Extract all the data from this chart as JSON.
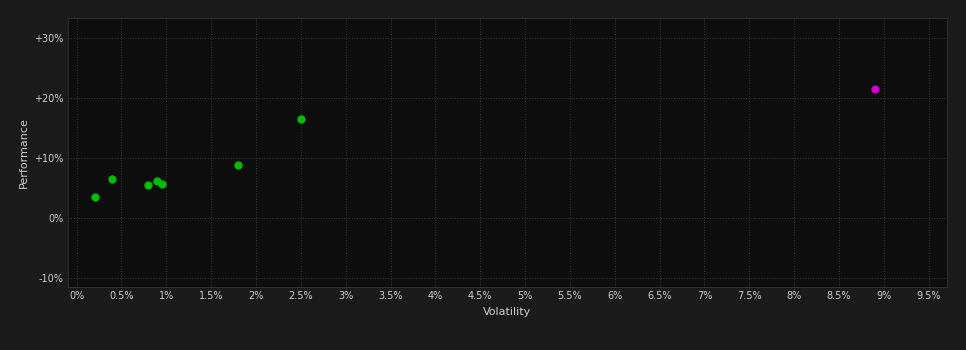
{
  "xlabel": "Volatility",
  "ylabel": "Performance",
  "background_color": "#1a1a1a",
  "plot_bg_color": "#0d0d0d",
  "grid_color": "#3a3a3a",
  "text_color": "#cccccc",
  "xlim": [
    -0.001,
    0.097
  ],
  "ylim": [
    -0.115,
    0.335
  ],
  "xticks": [
    0,
    0.005,
    0.01,
    0.015,
    0.02,
    0.025,
    0.03,
    0.035,
    0.04,
    0.045,
    0.05,
    0.055,
    0.06,
    0.065,
    0.07,
    0.075,
    0.08,
    0.085,
    0.09,
    0.095
  ],
  "yticks": [
    -0.1,
    0.0,
    0.1,
    0.2,
    0.3
  ],
  "green_points": [
    [
      0.002,
      0.035
    ],
    [
      0.004,
      0.065
    ],
    [
      0.008,
      0.055
    ],
    [
      0.009,
      0.062
    ],
    [
      0.0095,
      0.057
    ],
    [
      0.018,
      0.088
    ],
    [
      0.025,
      0.165
    ]
  ],
  "magenta_points": [
    [
      0.089,
      0.215
    ]
  ],
  "green_color": "#00bb00",
  "magenta_color": "#cc00cc",
  "marker_size": 5
}
